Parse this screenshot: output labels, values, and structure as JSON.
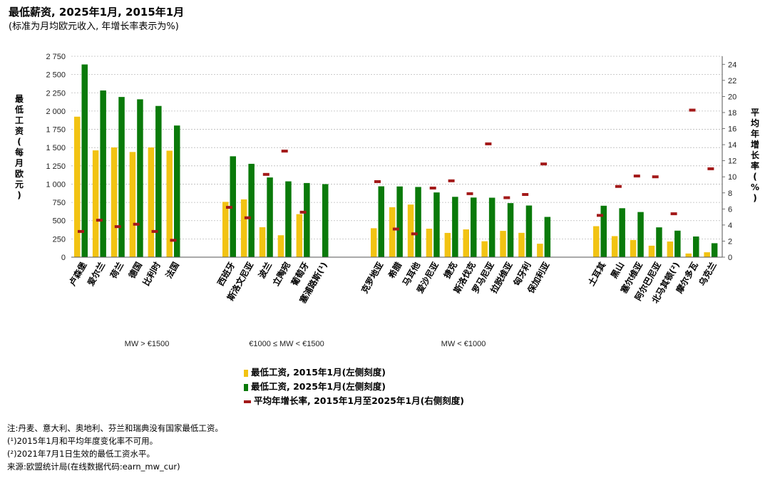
{
  "title": "最低薪资, 2025年1月, 2015年1月",
  "subtitle": "(标准为月均欧元收入, 年增长率表示为%)",
  "colors": {
    "mw2015": "#F2C313",
    "mw2025": "#0A7A0A",
    "growth": "#A31919",
    "grid": "#BBBBBB"
  },
  "chart_data": {
    "type": "bar",
    "y_label": "最低工资(每月欧元)",
    "y2_label": "平均年增长率(%)",
    "ylim": [
      0,
      2750
    ],
    "yticks": [
      "0",
      "250",
      "500",
      "750",
      "1 000",
      "1 250",
      "1 500",
      "1 750",
      "2 000",
      "2 250",
      "2 500",
      "2 750"
    ],
    "y2lim": [
      0,
      25
    ],
    "y2ticks": [
      "0",
      "2",
      "4",
      "6",
      "8",
      "10",
      "12",
      "14",
      "16",
      "18",
      "20",
      "22",
      "24"
    ],
    "grid": true,
    "groups": [
      {
        "label": "MW > €1500",
        "countries": [
          {
            "name": "卢森堡",
            "mw2015": 1923,
            "mw2025": 2638,
            "growth": 3.2
          },
          {
            "name": "爱尔兰",
            "mw2015": 1462,
            "mw2025": 2282,
            "growth": 4.6
          },
          {
            "name": "荷兰",
            "mw2015": 1502,
            "mw2025": 2193,
            "growth": 3.8
          },
          {
            "name": "德国",
            "mw2015": 1440,
            "mw2025": 2161,
            "growth": 4.1
          },
          {
            "name": "比利时",
            "mw2015": 1502,
            "mw2025": 2070,
            "growth": 3.2
          },
          {
            "name": "法国",
            "mw2015": 1458,
            "mw2025": 1802,
            "growth": 2.1
          }
        ]
      },
      {
        "label": "€1000 ≤ MW < €1500",
        "countries": [
          {
            "name": "西班牙",
            "mw2015": 757,
            "mw2025": 1381,
            "growth": 6.2
          },
          {
            "name": "斯洛文尼亚",
            "mw2015": 791,
            "mw2025": 1278,
            "growth": 4.9
          },
          {
            "name": "波兰",
            "mw2015": 410,
            "mw2025": 1091,
            "growth": 10.3
          },
          {
            "name": "立陶宛",
            "mw2015": 300,
            "mw2025": 1038,
            "growth": 13.2
          },
          {
            "name": "葡萄牙",
            "mw2015": 589,
            "mw2025": 1015,
            "growth": 5.6
          },
          {
            "name": "塞浦路斯(¹)",
            "mw2015": null,
            "mw2025": 1000,
            "growth": null
          }
        ]
      },
      {
        "label": "MW < €1000",
        "countries": [
          {
            "name": "克罗地亚",
            "mw2015": 396,
            "mw2025": 970,
            "growth": 9.4
          },
          {
            "name": "希腊",
            "mw2015": 684,
            "mw2025": 968,
            "growth": 3.5
          },
          {
            "name": "马耳他",
            "mw2015": 720,
            "mw2025": 961,
            "growth": 2.9
          },
          {
            "name": "爱沙尼亚",
            "mw2015": 390,
            "mw2025": 886,
            "growth": 8.6
          },
          {
            "name": "捷克",
            "mw2015": 332,
            "mw2025": 826,
            "growth": 9.5
          },
          {
            "name": "斯洛伐克",
            "mw2015": 380,
            "mw2025": 816,
            "growth": 7.9
          },
          {
            "name": "罗马尼亚",
            "mw2015": 218,
            "mw2025": 814,
            "growth": 14.1
          },
          {
            "name": "拉脱维亚",
            "mw2015": 360,
            "mw2025": 740,
            "growth": 7.4
          },
          {
            "name": "匈牙利",
            "mw2015": 333,
            "mw2025": 707,
            "growth": 7.8
          },
          {
            "name": "保加利亚",
            "mw2015": 184,
            "mw2025": 551,
            "growth": 11.6
          }
        ]
      },
      {
        "label": "",
        "countries": [
          {
            "name": "土耳其",
            "mw2015": 424,
            "mw2025": 704,
            "growth": 5.2
          },
          {
            "name": "黑山",
            "mw2015": 288,
            "mw2025": 670,
            "growth": 8.8
          },
          {
            "name": "塞尔维亚",
            "mw2015": 235,
            "mw2025": 618,
            "growth": 10.1
          },
          {
            "name": "阿尔巴尼亚",
            "mw2015": 157,
            "mw2025": 408,
            "growth": 10.0
          },
          {
            "name": "北马其顿(²)",
            "mw2015": 214,
            "mw2025": 363,
            "growth": 5.4
          },
          {
            "name": "摩尔多瓦",
            "mw2015": 50,
            "mw2025": 283,
            "growth": 18.3
          },
          {
            "name": "乌克兰",
            "mw2015": 67,
            "mw2025": 191,
            "growth": 11.0
          }
        ]
      }
    ]
  },
  "legend": {
    "mw2015": "最低工资, 2015年1月(左侧刻度)",
    "mw2025": "最低工资, 2025年1月(左侧刻度)",
    "growth": "平均年增长率, 2015年1月至2025年1月(右侧刻度)"
  },
  "notes": [
    "注:丹麦、意大利、奥地利、芬兰和瑞典没有国家最低工资。",
    "(¹)2015年1月和平均年度变化率不可用。",
    "(²)2021年7月1日生效的最低工资水平。",
    "来源:欧盟统计局(在线数据代码:earn_mw_cur)"
  ]
}
